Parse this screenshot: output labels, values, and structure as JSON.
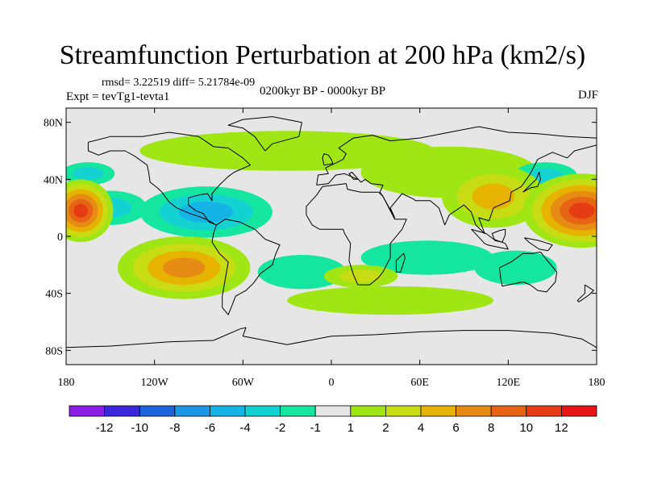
{
  "title": "Streamfunction Perturbation at 200 hPa (km2/s)",
  "stats": "rmsd= 3.22519  diff= 5.21784e-09",
  "expt": "Expt = tevTg1-tevta1",
  "period": "0200kyr BP - 0000kyr BP",
  "season": "DJF",
  "chart_data": {
    "type": "heatmap",
    "projection": "cylindrical-equidistant",
    "variable": "Streamfunction perturbation at 200 hPa",
    "units": "km2/s",
    "x_ticks": [
      "180",
      "120W",
      "60W",
      "0",
      "60E",
      "120E",
      "180"
    ],
    "y_ticks": [
      "80N",
      "40N",
      "0",
      "40S",
      "80S"
    ],
    "xlim": [
      -180,
      180
    ],
    "ylim": [
      -90,
      90
    ],
    "colorbar": {
      "levels": [
        "-12",
        "-10",
        "-8",
        "-6",
        "-4",
        "-2",
        "-1",
        "1",
        "2",
        "4",
        "6",
        "8",
        "10",
        "12"
      ],
      "colors": [
        "#8a1ee6",
        "#3c28dc",
        "#1e64dc",
        "#1e96e6",
        "#14b4e6",
        "#14d2d2",
        "#14e6a0",
        "#e6e6e6",
        "#a0e614",
        "#c8dc14",
        "#e6b400",
        "#e68c14",
        "#e66414",
        "#e63c14",
        "#e61414"
      ]
    },
    "features": [
      {
        "name": "north-pacific-high",
        "lon": -170,
        "lat": 18,
        "value": 12
      },
      {
        "name": "west-pacific-high",
        "lon": 170,
        "lat": 18,
        "value": 12
      },
      {
        "name": "east-asia-high",
        "lon": 110,
        "lat": 28,
        "value": 6
      },
      {
        "name": "south-pacific-high",
        "lon": -100,
        "lat": -22,
        "value": 8
      },
      {
        "name": "caribbean-low",
        "lon": -85,
        "lat": 17,
        "value": -6
      },
      {
        "name": "central-pacific-low",
        "lon": -150,
        "lat": 20,
        "value": -4
      },
      {
        "name": "north-pacific-low",
        "lon": -165,
        "lat": 44,
        "value": -4
      },
      {
        "name": "northwest-pacific-low",
        "lon": 145,
        "lat": 42,
        "value": -4
      },
      {
        "name": "indian-ocean-low",
        "lon": 65,
        "lat": -15,
        "value": -2
      },
      {
        "name": "australia-low",
        "lon": 125,
        "lat": -22,
        "value": -2
      },
      {
        "name": "north-atlantic-band",
        "lon": -30,
        "lat": 60,
        "value": 2
      },
      {
        "name": "south-africa-high",
        "lon": 20,
        "lat": -28,
        "value": 4
      },
      {
        "name": "southern-ocean-band",
        "lon": 40,
        "lat": -45,
        "value": 2
      },
      {
        "name": "south-atlantic-low",
        "lon": -20,
        "lat": -25,
        "value": -2
      },
      {
        "name": "eurasia-positive",
        "lon": 80,
        "lat": 45,
        "value": 2
      }
    ]
  }
}
